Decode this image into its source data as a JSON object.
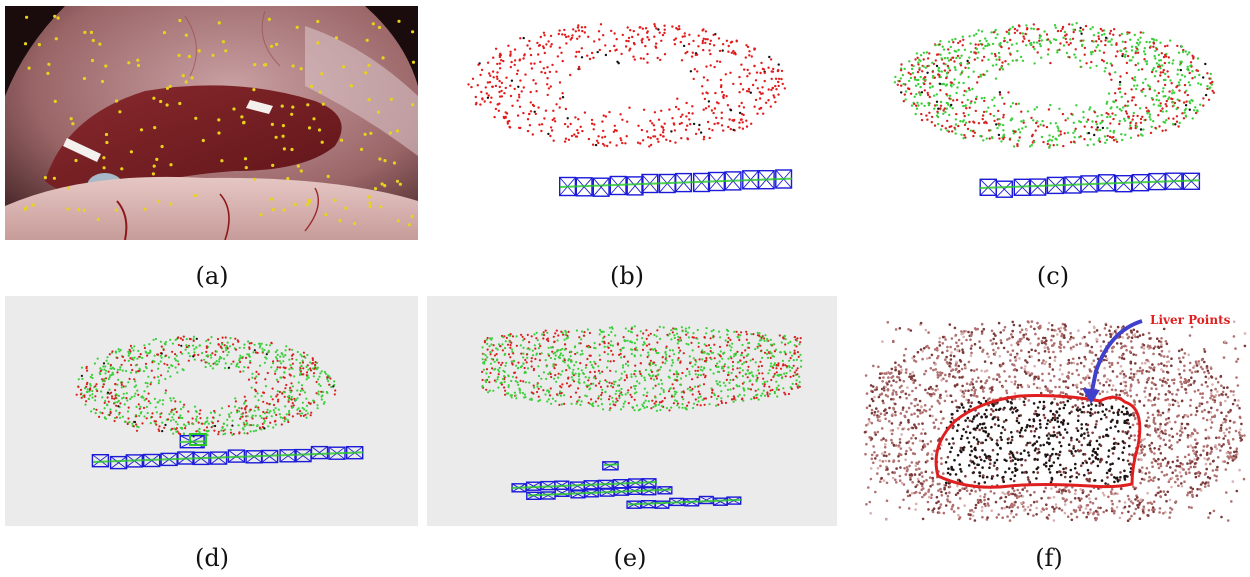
{
  "figure": {
    "panels": [
      {
        "id": "a",
        "caption": "(a)",
        "kind": "endoscopic-photo",
        "dominant_colors": [
          "#7a1f22",
          "#b77a7a",
          "#d8b6b6"
        ],
        "feature_color": "#e9d21c"
      },
      {
        "id": "b",
        "caption": "(b)",
        "kind": "point-cloud",
        "background": "#ffffff",
        "point_colors": [
          "#e31b1b",
          "#111111"
        ],
        "camera_color": "#1a1ad8",
        "trajectory_color": "#26c826"
      },
      {
        "id": "c",
        "caption": "(c)",
        "kind": "point-cloud",
        "background": "#ffffff",
        "point_colors": [
          "#3ccf3c",
          "#d82020",
          "#111111"
        ],
        "camera_color": "#1a1ad8",
        "trajectory_color": "#26c826"
      },
      {
        "id": "d",
        "caption": "(d)",
        "kind": "point-cloud",
        "background": "#ebebeb",
        "point_colors": [
          "#3ccf3c",
          "#d82020",
          "#111111"
        ],
        "camera_color": "#1a1ad8",
        "trajectory_color": "#26c826"
      },
      {
        "id": "e",
        "caption": "(e)",
        "kind": "point-cloud",
        "background": "#ebebeb",
        "point_colors": [
          "#3ccf3c",
          "#d82020"
        ],
        "camera_color": "#1a1ad8",
        "trajectory_color": "#26c826"
      },
      {
        "id": "f",
        "caption": "(f)",
        "kind": "dense-point-cloud",
        "background": "#ffffff",
        "point_colors": [
          "#b07070",
          "#7a3a3a",
          "#1e1414"
        ],
        "outline_color": "#e02020",
        "arrow_color": "#4040cc",
        "annotation": "Liver Points"
      }
    ]
  }
}
